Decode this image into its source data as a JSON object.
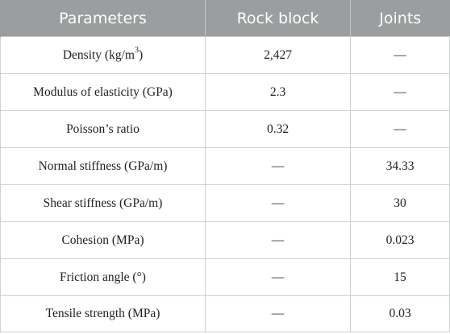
{
  "table": {
    "headers": [
      "Parameters",
      "Rock block",
      "Joints"
    ],
    "rows": [
      {
        "parameter": "Density (kg/m",
        "parameter_sup": "3",
        "parameter_tail": ")",
        "rock_block": "2,427",
        "joints": "—"
      },
      {
        "parameter": "Modulus of elasticity (GPa)",
        "rock_block": "2.3",
        "joints": "—"
      },
      {
        "parameter": "Poisson’s ratio",
        "rock_block": "0.32",
        "joints": "—"
      },
      {
        "parameter": "Normal stiffness (GPa/m)",
        "rock_block": "—",
        "joints": "34.33"
      },
      {
        "parameter": "Shear stiffness (GPa/m)",
        "rock_block": "—",
        "joints": "30"
      },
      {
        "parameter": "Cohesion (MPa)",
        "rock_block": "—",
        "joints": "0.023"
      },
      {
        "parameter": "Friction angle (°)",
        "rock_block": "—",
        "joints": "15"
      },
      {
        "parameter": "Tensile strength (MPa)",
        "rock_block": "—",
        "joints": "0.03"
      }
    ]
  },
  "colors": {
    "header_bg": "#9b9e9e",
    "header_text": "#ffffff",
    "grid": "#cfd1d1",
    "body_text": "#222222"
  }
}
